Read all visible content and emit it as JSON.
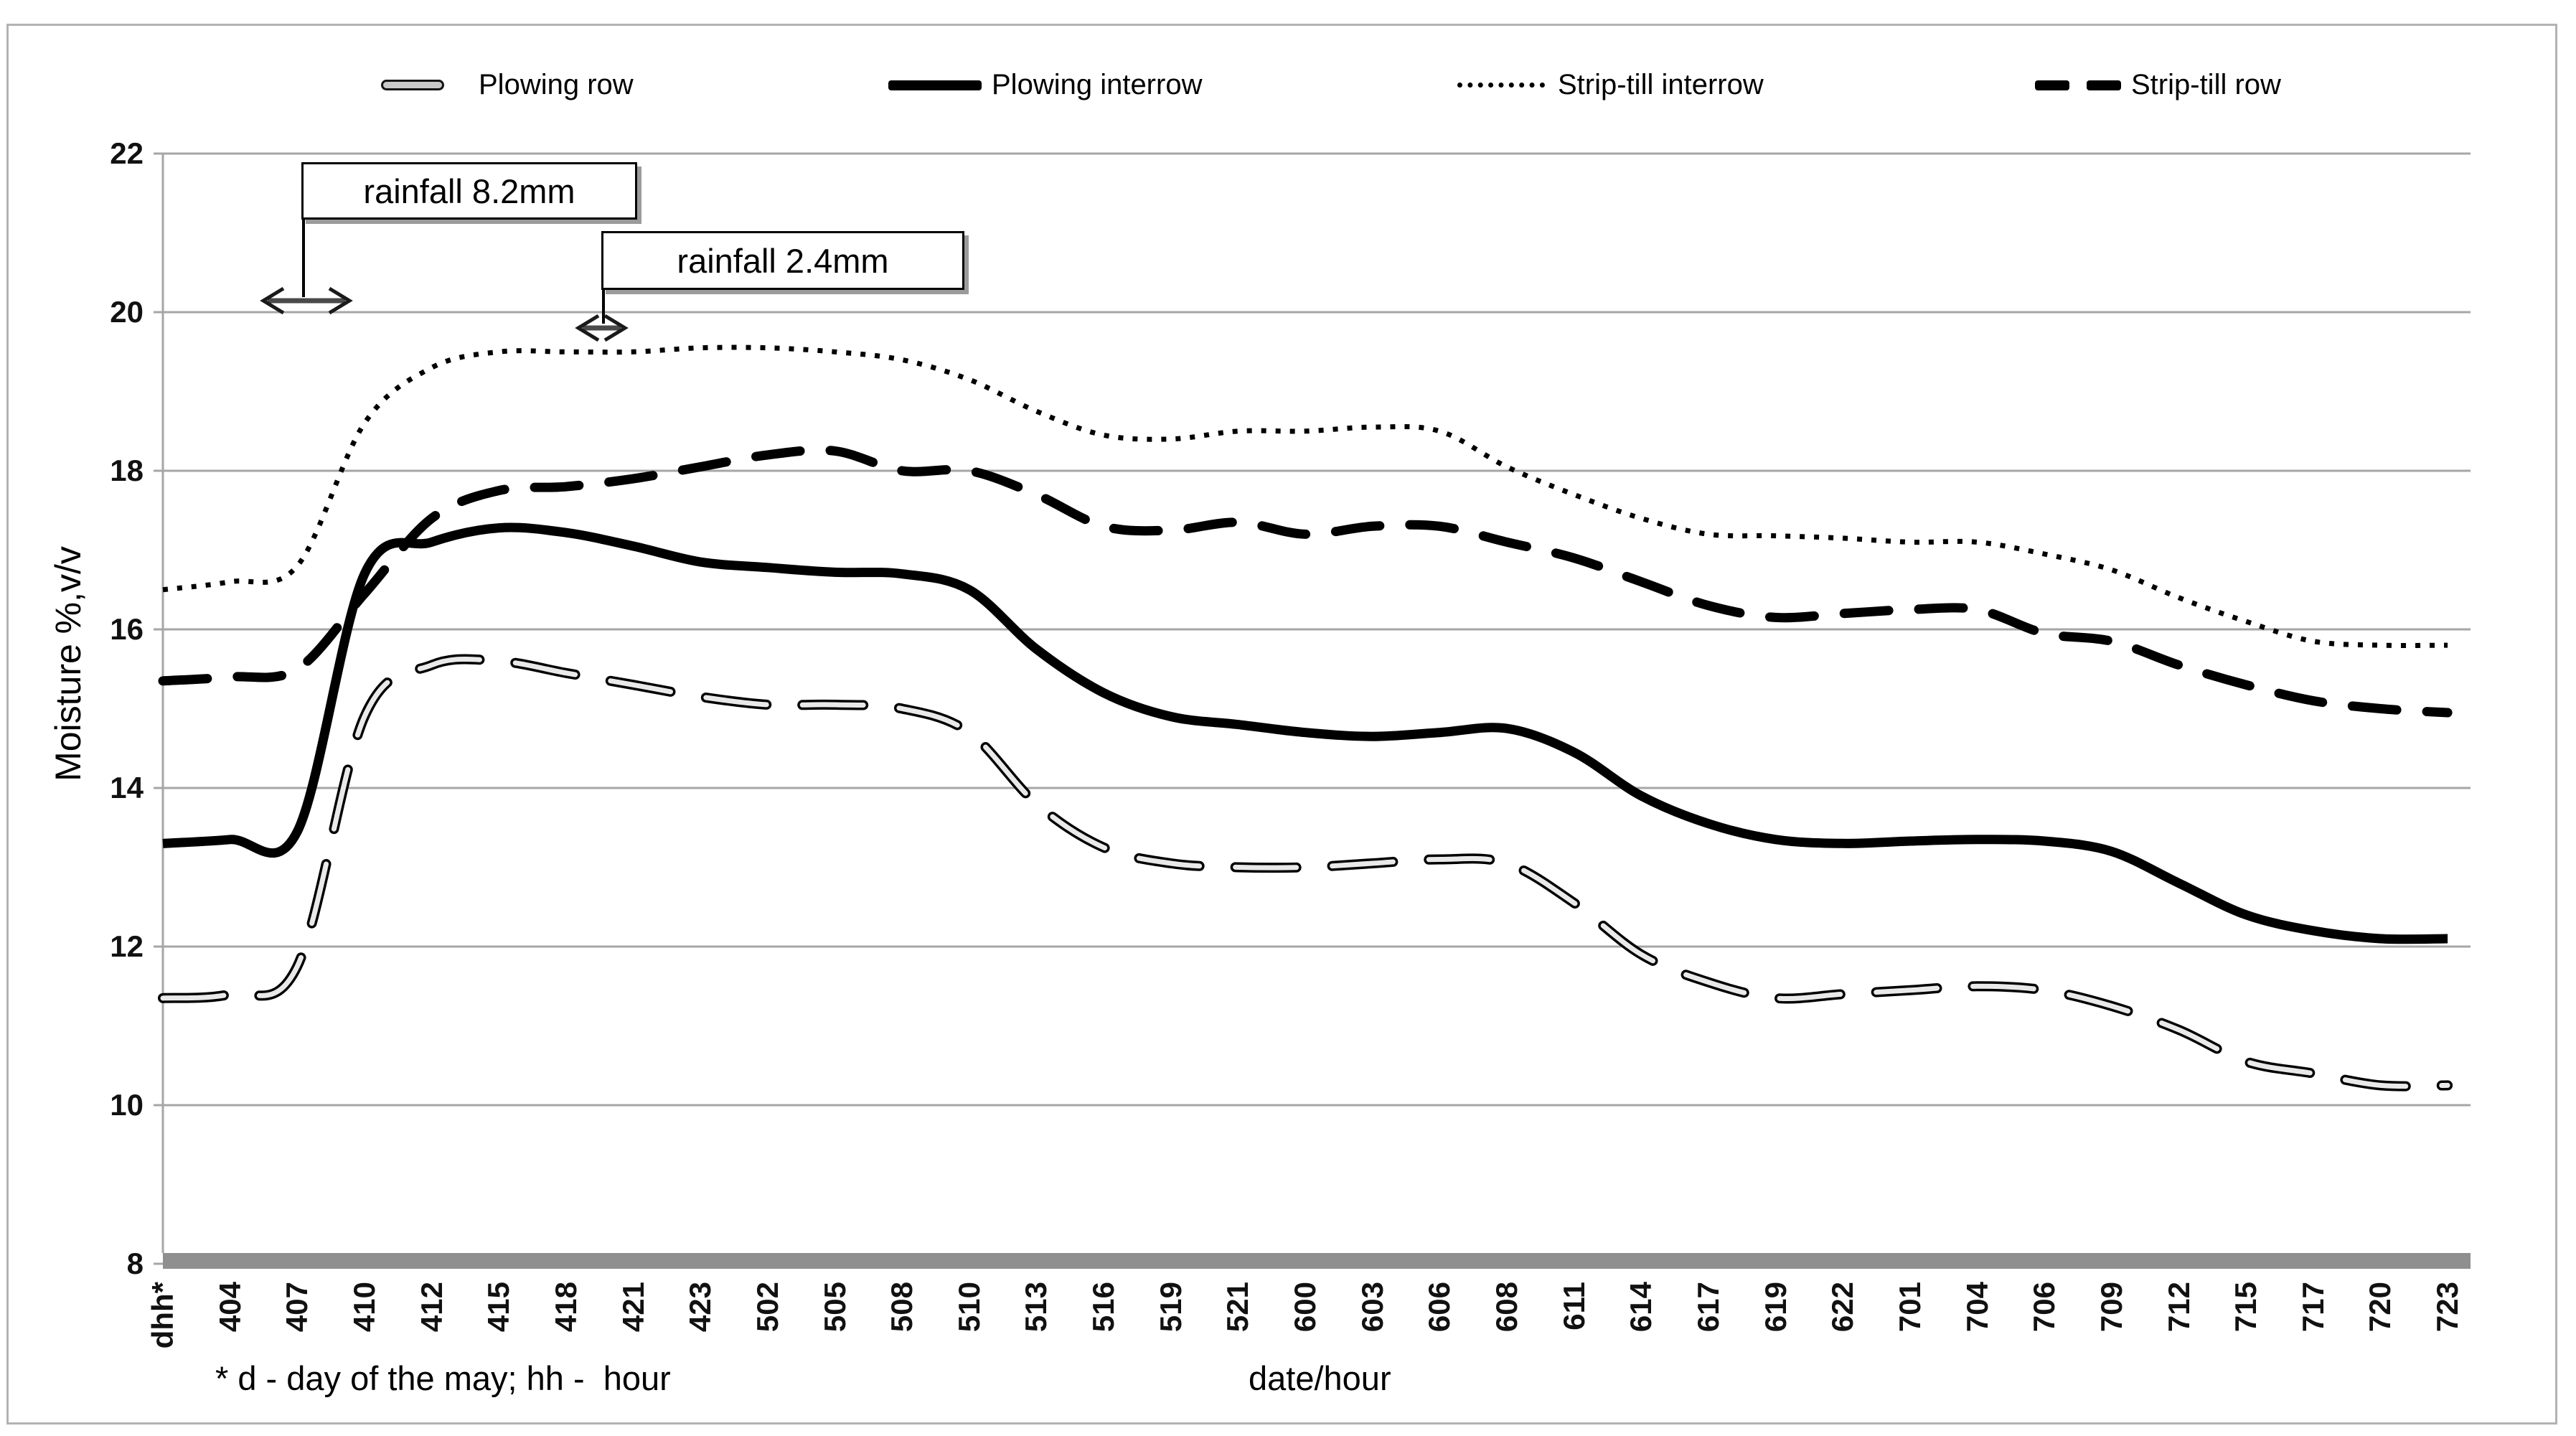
{
  "chart_data": {
    "type": "line",
    "title": "",
    "xlabel": "date/hour",
    "ylabel": "Moisture %,v/v",
    "ylim": [
      8,
      22
    ],
    "yticks": [
      22,
      20,
      18,
      16,
      14,
      12,
      10,
      8
    ],
    "grid": "horizontal",
    "legend_position": "top",
    "categories": [
      "dhh*",
      "404",
      "407",
      "410",
      "412",
      "415",
      "418",
      "421",
      "423",
      "502",
      "505",
      "508",
      "510",
      "513",
      "516",
      "519",
      "521",
      "600",
      "603",
      "606",
      "608",
      "611",
      "614",
      "617",
      "619",
      "622",
      "701",
      "704",
      "706",
      "709",
      "712",
      "715",
      "717",
      "720",
      "723"
    ],
    "series": [
      {
        "name": "Plowing row",
        "style": "gray-outlined-dash",
        "values": [
          11.35,
          11.4,
          11.75,
          14.9,
          15.55,
          15.6,
          15.45,
          15.3,
          15.15,
          15.05,
          15.05,
          15.0,
          14.7,
          13.8,
          13.25,
          13.05,
          13.0,
          13.0,
          13.05,
          13.1,
          13.05,
          12.55,
          11.9,
          11.55,
          11.35,
          11.4,
          11.45,
          11.5,
          11.45,
          11.25,
          10.95,
          10.55,
          10.4,
          10.25,
          10.25
        ]
      },
      {
        "name": "Plowing interrow",
        "style": "solid-black-thick",
        "values": [
          13.3,
          13.35,
          13.45,
          16.7,
          17.1,
          17.28,
          17.22,
          17.05,
          16.85,
          16.78,
          16.72,
          16.7,
          16.5,
          15.75,
          15.2,
          14.9,
          14.8,
          14.7,
          14.65,
          14.7,
          14.75,
          14.45,
          13.9,
          13.55,
          13.35,
          13.3,
          13.33,
          13.35,
          13.33,
          13.2,
          12.8,
          12.4,
          12.2,
          12.1,
          12.1
        ]
      },
      {
        "name": "Strip-till interrow",
        "style": "black-dotted",
        "values": [
          16.5,
          16.6,
          16.8,
          18.6,
          19.3,
          19.5,
          19.5,
          19.5,
          19.55,
          19.55,
          19.5,
          19.4,
          19.15,
          18.75,
          18.45,
          18.4,
          18.5,
          18.5,
          18.55,
          18.5,
          18.05,
          17.7,
          17.4,
          17.2,
          17.18,
          17.15,
          17.1,
          17.1,
          16.95,
          16.75,
          16.4,
          16.1,
          15.85,
          15.8,
          15.8
        ]
      },
      {
        "name": "Strip-till row",
        "style": "black-thick-dash",
        "values": [
          15.35,
          15.4,
          15.5,
          16.45,
          17.4,
          17.75,
          17.8,
          17.9,
          18.05,
          18.2,
          18.25,
          18.0,
          18.0,
          17.7,
          17.3,
          17.25,
          17.35,
          17.2,
          17.3,
          17.3,
          17.1,
          16.9,
          16.6,
          16.3,
          16.15,
          16.2,
          16.25,
          16.25,
          15.95,
          15.85,
          15.55,
          15.3,
          15.1,
          15.0,
          14.95
        ]
      }
    ]
  },
  "annotations": {
    "rainfall_1": "rainfall 8.2mm",
    "rainfall_2": "rainfall 2.4mm",
    "footnote": "* d - day of the may; hh -  hour"
  },
  "colors": {
    "ink": "#000000",
    "gridline": "#a6a6a6",
    "axis_bar": "#8f8f8f",
    "outlined_dash_fill": "#e9e9e9",
    "frame": "#b3b3b3"
  }
}
